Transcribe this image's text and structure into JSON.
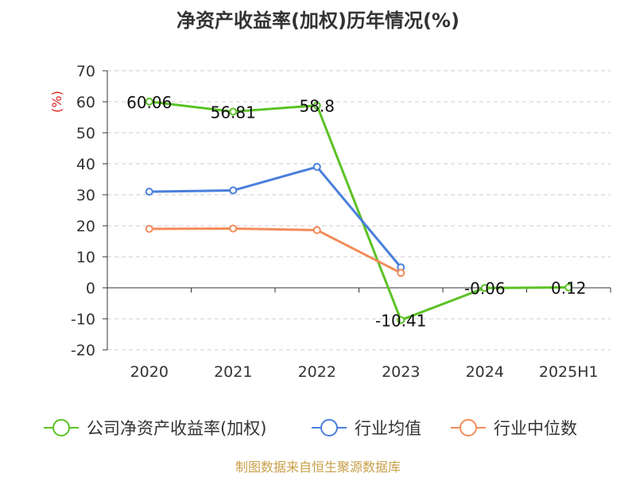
{
  "chart_data": {
    "type": "line",
    "title": "净资产收益率(加权)历年情况(%)",
    "ylabel": "(%)",
    "xlabel": "",
    "categories": [
      "2020",
      "2021",
      "2022",
      "2023",
      "2024",
      "2025H1"
    ],
    "ylim": [
      -20,
      70
    ],
    "yticks": [
      -20,
      -10,
      0,
      10,
      20,
      30,
      40,
      50,
      60,
      70
    ],
    "grid": true,
    "legend_position": "bottom",
    "series": [
      {
        "name": "公司净资产收益率(加权)",
        "color": "#5bc225",
        "values": [
          60.06,
          56.81,
          58.8,
          -10.41,
          -0.06,
          0.12
        ],
        "labels": [
          "60.06",
          "56.81",
          "58.8",
          "-10.41",
          "-0.06",
          "0.12"
        ]
      },
      {
        "name": "行业均值",
        "color": "#4a7fdc",
        "values": [
          31,
          31.4,
          39,
          6.6,
          null,
          null
        ]
      },
      {
        "name": "行业中位数",
        "color": "#f28c5a",
        "values": [
          19,
          19.1,
          18.6,
          4.8,
          null,
          null
        ]
      }
    ]
  },
  "source": "制图数据来自恒生聚源数据库",
  "colors": {
    "title": "#333333",
    "ylabel": "#e0201b",
    "source": "#c8a04a"
  }
}
